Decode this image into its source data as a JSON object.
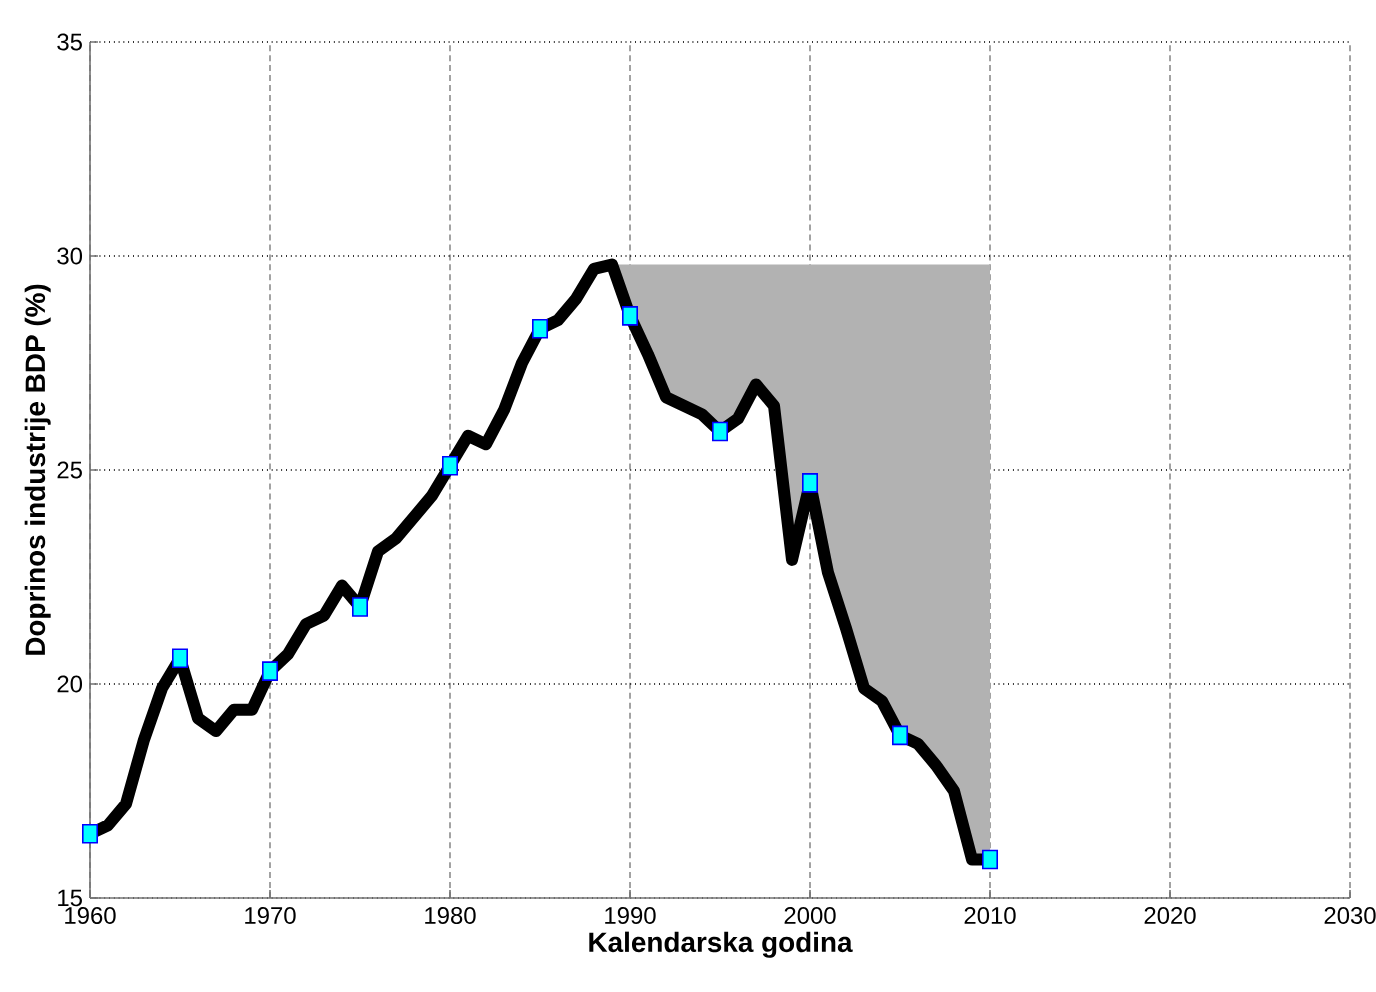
{
  "chart_data": {
    "type": "line",
    "xlabel": "Kalendarska godina",
    "ylabel": "Doprinos industrije BDP (%)",
    "xlim": [
      1960,
      2030
    ],
    "ylim": [
      15,
      35
    ],
    "xticks": [
      1960,
      1970,
      1980,
      1990,
      2000,
      2010,
      2020,
      2030
    ],
    "yticks": [
      15,
      20,
      25,
      30,
      35
    ],
    "grid": true,
    "series": [
      {
        "color": "#000000",
        "marker": "none",
        "x": [
          1960,
          1961,
          1962,
          1963,
          1964,
          1965,
          1966,
          1967,
          1968,
          1969,
          1970,
          1971,
          1972,
          1973,
          1974,
          1975,
          1976,
          1977,
          1978,
          1979,
          1980,
          1981,
          1982,
          1983,
          1984,
          1985,
          1986,
          1987,
          1988,
          1989,
          1990,
          1991,
          1992,
          1993,
          1994,
          1995,
          1996,
          1997,
          1998,
          1999,
          2000,
          2001,
          2002,
          2003,
          2004,
          2005,
          2006,
          2007,
          2008,
          2009,
          2010
        ],
        "values": [
          16.5,
          16.7,
          17.2,
          18.7,
          19.9,
          20.6,
          19.2,
          18.9,
          19.4,
          19.4,
          20.3,
          20.7,
          21.4,
          21.6,
          22.3,
          21.8,
          23.1,
          23.4,
          23.9,
          24.4,
          25.1,
          25.8,
          25.6,
          26.4,
          27.5,
          28.3,
          28.5,
          29.0,
          29.7,
          29.8,
          28.6,
          27.7,
          26.7,
          26.5,
          26.3,
          25.9,
          26.2,
          27.0,
          26.5,
          22.9,
          24.7,
          22.6,
          21.3,
          19.9,
          19.6,
          18.8,
          18.6,
          18.1,
          17.5,
          15.9,
          15.9
        ],
        "lower": [
          null,
          null,
          null,
          null,
          null,
          null,
          null,
          null,
          null,
          null,
          null,
          null,
          null,
          null,
          null,
          null,
          null,
          null,
          null,
          null,
          null,
          null,
          null,
          null,
          null,
          null,
          null,
          null,
          null,
          29.8,
          28.6,
          27.7,
          26.7,
          26.5,
          26.3,
          25.9,
          26.2,
          27.0,
          26.5,
          22.9,
          24.7,
          22.6,
          21.3,
          19.9,
          19.6,
          18.8,
          18.6,
          18.1,
          17.5,
          15.9,
          15.9
        ],
        "upper": [
          null,
          null,
          null,
          null,
          null,
          null,
          null,
          null,
          null,
          null,
          null,
          null,
          null,
          null,
          null,
          null,
          null,
          null,
          null,
          null,
          null,
          null,
          null,
          null,
          null,
          null,
          null,
          null,
          null,
          29.8,
          29.8,
          29.8,
          29.8,
          29.8,
          29.8,
          29.8,
          29.8,
          29.8,
          29.8,
          29.8,
          29.8,
          29.8,
          29.8,
          29.8,
          29.8,
          29.8,
          29.8,
          29.8,
          29.8,
          29.8,
          29.8
        ]
      },
      {
        "type": "scatter",
        "color": "#00ffff",
        "marker": "square",
        "x": [
          1960,
          1965,
          1970,
          1975,
          1980,
          1985,
          1990,
          1995,
          2000,
          2005,
          2010
        ],
        "values": [
          16.5,
          20.6,
          20.3,
          21.8,
          25.1,
          28.3,
          28.6,
          25.9,
          24.7,
          18.8,
          15.9
        ]
      }
    ]
  }
}
